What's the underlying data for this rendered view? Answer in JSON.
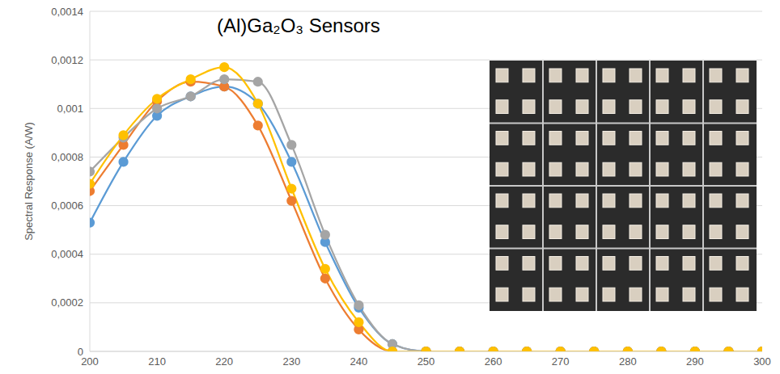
{
  "chart_data": {
    "type": "line",
    "title": "(Al)Ga₂O₃ Sensors",
    "y_label": "Spectral Response (A/W)",
    "x": [
      200,
      205,
      210,
      215,
      220,
      225,
      230,
      235,
      240,
      245,
      250,
      255,
      260,
      265,
      270,
      275,
      280,
      285,
      290,
      295,
      300
    ],
    "series": [
      {
        "color": "#5b9bd5",
        "values": [
          0.00053,
          0.00078,
          0.00097,
          0.00105,
          0.00109,
          0.00102,
          0.00078,
          0.00045,
          0.00018,
          3e-05,
          0,
          0,
          0,
          0,
          0,
          0,
          0,
          0,
          0,
          0,
          0
        ]
      },
      {
        "color": "#ed7d31",
        "values": [
          0.00066,
          0.00085,
          0.00103,
          0.00111,
          0.00109,
          0.00093,
          0.00062,
          0.0003,
          9e-05,
          0,
          0,
          0,
          0,
          0,
          0,
          0,
          0,
          0,
          0,
          0,
          0
        ]
      },
      {
        "color": "#a5a5a5",
        "values": [
          0.00074,
          0.00088,
          0.001,
          0.00105,
          0.00112,
          0.00111,
          0.00085,
          0.00048,
          0.00019,
          3e-05,
          0,
          0,
          0,
          0,
          0,
          0,
          0,
          0,
          0,
          0,
          0
        ]
      },
      {
        "color": "#ffc000",
        "values": [
          0.00069,
          0.00089,
          0.00104,
          0.00112,
          0.00117,
          0.00102,
          0.00067,
          0.00034,
          0.00012,
          0,
          0,
          0,
          0,
          0,
          0,
          0,
          0,
          0,
          0,
          0,
          0
        ]
      }
    ],
    "xlim": [
      200,
      300
    ],
    "xticks": [
      200,
      210,
      220,
      230,
      240,
      250,
      260,
      270,
      280,
      290,
      300
    ],
    "ylim": [
      0,
      0.0014
    ],
    "yticks": [
      0,
      {
        "value": 0.0002,
        "label": "0,0002"
      },
      {
        "value": 0.0004,
        "label": "0,0004"
      },
      {
        "value": 0.0006,
        "label": "0,0006"
      },
      {
        "value": 0.0008,
        "label": "0,0008"
      },
      {
        "value": 0.001,
        "label": "0,001"
      },
      {
        "value": 0.0012,
        "label": "0,0012"
      },
      {
        "value": 0.0014,
        "label": "0,0014"
      }
    ],
    "grid": true,
    "marker": "circle",
    "line_style": "solid"
  }
}
